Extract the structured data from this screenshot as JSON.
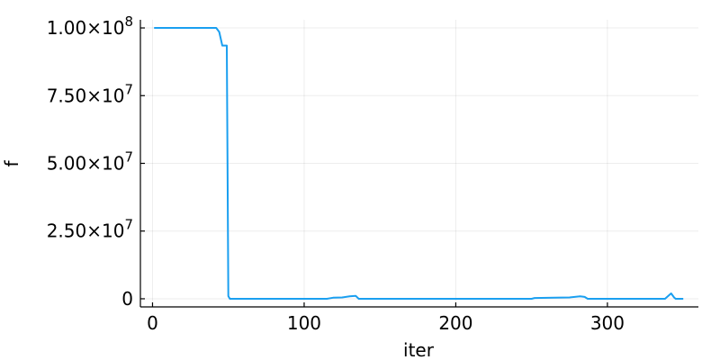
{
  "chart_data": {
    "type": "line",
    "title": "",
    "xlabel": "iter",
    "ylabel": "f",
    "xlim": [
      -8,
      360
    ],
    "ylim": [
      -3000000,
      103000000
    ],
    "grid": true,
    "legend": "none",
    "x_ticks": [
      {
        "value": 0,
        "label": "0"
      },
      {
        "value": 100,
        "label": "100"
      },
      {
        "value": 200,
        "label": "200"
      },
      {
        "value": 300,
        "label": "300"
      }
    ],
    "y_ticks": [
      {
        "value": 0,
        "mantissa": "0",
        "exponent": ""
      },
      {
        "value": 25000000,
        "mantissa": "2.50×10",
        "exponent": "7"
      },
      {
        "value": 50000000,
        "mantissa": "5.00×10",
        "exponent": "7"
      },
      {
        "value": 75000000,
        "mantissa": "7.50×10",
        "exponent": "7"
      },
      {
        "value": 100000000,
        "mantissa": "1.00×10",
        "exponent": "8"
      }
    ],
    "series": [
      {
        "color": "#1a9ff0",
        "points": [
          [
            1,
            100000000
          ],
          [
            42,
            100000000
          ],
          [
            44,
            98500000
          ],
          [
            46,
            93500000
          ],
          [
            49,
            93500000
          ],
          [
            50,
            1000000
          ],
          [
            51,
            0
          ],
          [
            60,
            0
          ],
          [
            100,
            0
          ],
          [
            115,
            0
          ],
          [
            119,
            400000
          ],
          [
            125,
            500000
          ],
          [
            130,
            900000
          ],
          [
            134,
            1100000
          ],
          [
            136,
            0
          ],
          [
            150,
            0
          ],
          [
            200,
            0
          ],
          [
            250,
            0
          ],
          [
            252,
            300000
          ],
          [
            265,
            400000
          ],
          [
            275,
            500000
          ],
          [
            282,
            900000
          ],
          [
            285,
            700000
          ],
          [
            287,
            0
          ],
          [
            300,
            0
          ],
          [
            338,
            0
          ],
          [
            341,
            1500000
          ],
          [
            342,
            2000000
          ],
          [
            344,
            500000
          ],
          [
            345,
            0
          ],
          [
            350,
            0
          ]
        ]
      }
    ]
  }
}
